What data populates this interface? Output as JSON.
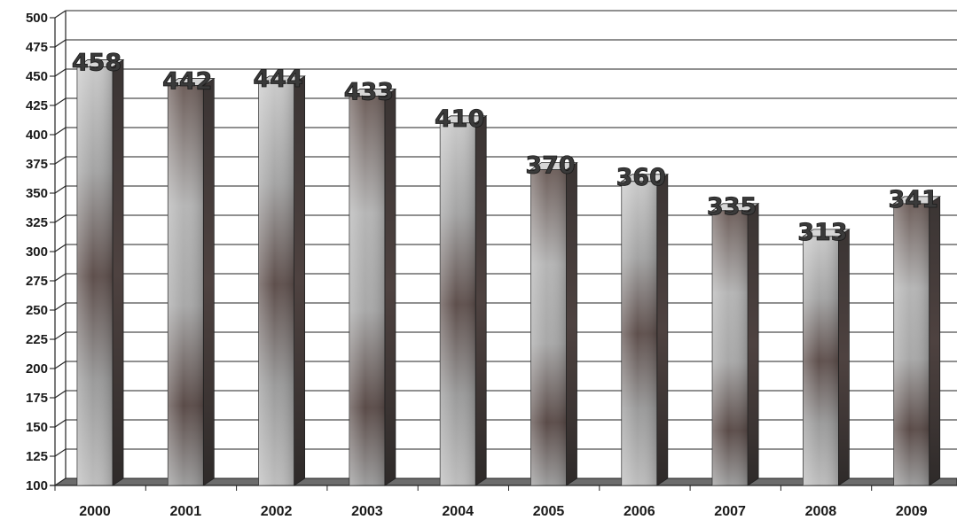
{
  "chart_data": {
    "type": "bar",
    "title": "",
    "xlabel": "",
    "ylabel": "",
    "categories": [
      "2000",
      "2001",
      "2002",
      "2003",
      "2004",
      "2005",
      "2006",
      "2007",
      "2008",
      "2009"
    ],
    "values": [
      458,
      442,
      444,
      433,
      410,
      370,
      360,
      335,
      313,
      341
    ],
    "data_labels": [
      "458",
      "442",
      "444",
      "433",
      "410",
      "370",
      "360",
      "335",
      "313",
      "341"
    ],
    "yticks": [
      "100",
      "125",
      "150",
      "175",
      "200",
      "225",
      "250",
      "275",
      "300",
      "325",
      "350",
      "375",
      "400",
      "425",
      "450",
      "475",
      "500"
    ],
    "ylim": [
      100,
      500
    ],
    "grid": true,
    "legend": "none",
    "style": "3d-bar",
    "colors": {
      "bar_light": "#b4b4b4",
      "bar_dark": "#5a4a48",
      "grid": "#222222"
    }
  }
}
